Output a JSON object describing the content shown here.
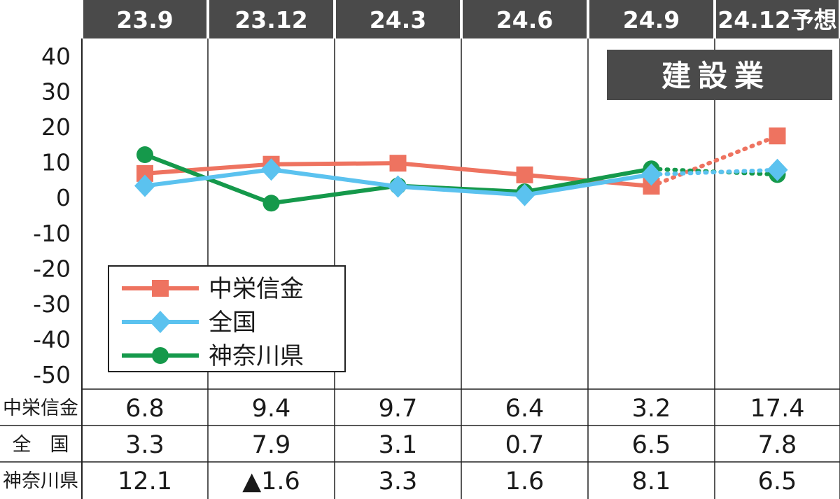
{
  "chart_data": {
    "type": "line",
    "categories": [
      "23.9",
      "23.12",
      "24.3",
      "24.6",
      "24.9",
      "24.12予想"
    ],
    "ylim": [
      -50,
      40
    ],
    "yticks": [
      "40",
      "30",
      "20",
      "10",
      "0",
      "-10",
      "-20",
      "-30",
      "-40",
      "-50"
    ],
    "badge": "建設業",
    "grid": false,
    "legend_position": "bottom-left",
    "forecast_from_index": 4,
    "series": [
      {
        "name": "中栄信金",
        "color": "#ee7360",
        "marker": "square",
        "values": [
          6.8,
          9.4,
          9.7,
          6.4,
          3.2,
          17.4
        ]
      },
      {
        "name": "全国",
        "color": "#5bc2ef",
        "marker": "diamond",
        "values": [
          3.3,
          7.9,
          3.1,
          0.7,
          6.5,
          7.8
        ]
      },
      {
        "name": "神奈川県",
        "color": "#15994b",
        "marker": "circle",
        "values": [
          12.1,
          -1.6,
          3.3,
          1.6,
          8.1,
          6.5
        ]
      }
    ],
    "table": {
      "rows": [
        {
          "label": "中栄信金",
          "cells": [
            "6.8",
            "9.4",
            "9.7",
            "6.4",
            "3.2",
            "17.4"
          ]
        },
        {
          "label": "全　国",
          "cells": [
            "3.3",
            "7.9",
            "3.1",
            "0.7",
            "6.5",
            "7.8"
          ]
        },
        {
          "label": "神奈川県",
          "cells": [
            "12.1",
            "▲1.6",
            "3.3",
            "1.6",
            "8.1",
            "6.5"
          ]
        }
      ]
    }
  }
}
